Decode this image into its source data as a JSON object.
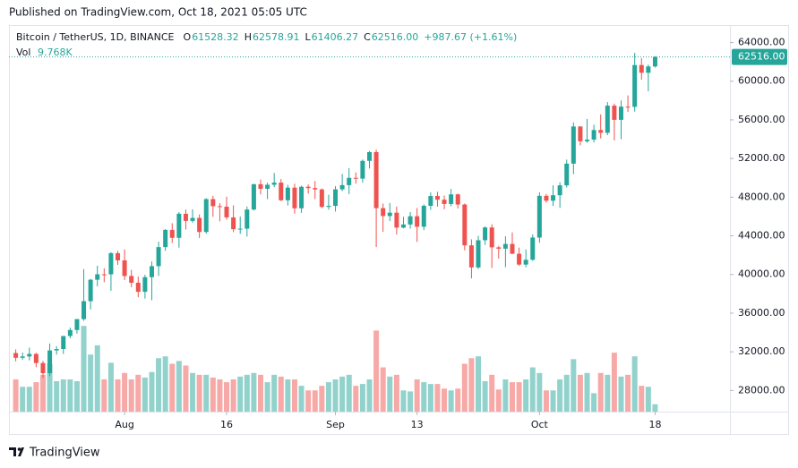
{
  "published": "Published on TradingView.com, Oct 18, 2021 05:05 UTC",
  "brand": "TradingView",
  "chart_data": {
    "type": "candlestick",
    "symbol": "Bitcoin / TetherUS, 1D, BINANCE",
    "legend": [
      {
        "key": "O",
        "value": "61528.32"
      },
      {
        "key": "H",
        "value": "62578.91"
      },
      {
        "key": "L",
        "value": "61406.27"
      },
      {
        "key": "C",
        "value": "62516.00"
      }
    ],
    "change": "+987.67 (+1.61%)",
    "volume_legend": {
      "key": "Vol",
      "value": "9.768K"
    },
    "last_price_label": "62516.00",
    "up_color": "#26a69a",
    "down_color": "#ef5350",
    "xlim": [
      "2021-07-15",
      "2021-10-29"
    ],
    "xticks": [
      {
        "value": "2021-08-01",
        "label": "Aug"
      },
      {
        "value": "2021-08-16",
        "label": "16"
      },
      {
        "value": "2021-09-01",
        "label": "Sep"
      },
      {
        "value": "2021-09-13",
        "label": "13"
      },
      {
        "value": "2021-10-01",
        "label": "Oct"
      },
      {
        "value": "2021-10-18",
        "label": "18"
      }
    ],
    "ylim": [
      25810,
      65810
    ],
    "yticks": [
      {
        "value": 28000,
        "label": "28000.00"
      },
      {
        "value": 32000,
        "label": "32000.00"
      },
      {
        "value": 36000,
        "label": "36000.00"
      },
      {
        "value": 40000,
        "label": "40000.00"
      },
      {
        "value": 44000,
        "label": "44000.00"
      },
      {
        "value": 48000,
        "label": "48000.00"
      },
      {
        "value": 52000,
        "label": "52000.00"
      },
      {
        "value": 56000,
        "label": "56000.00"
      },
      {
        "value": 60000,
        "label": "60000.00"
      },
      {
        "value": 64000,
        "label": "64000.00"
      }
    ],
    "volume_ylim": [
      0,
      512000
    ],
    "x": [
      "2021-07-16",
      "2021-07-17",
      "2021-07-18",
      "2021-07-19",
      "2021-07-20",
      "2021-07-21",
      "2021-07-22",
      "2021-07-23",
      "2021-07-24",
      "2021-07-25",
      "2021-07-26",
      "2021-07-27",
      "2021-07-28",
      "2021-07-29",
      "2021-07-30",
      "2021-07-31",
      "2021-08-01",
      "2021-08-02",
      "2021-08-03",
      "2021-08-04",
      "2021-08-05",
      "2021-08-06",
      "2021-08-07",
      "2021-08-08",
      "2021-08-09",
      "2021-08-10",
      "2021-08-11",
      "2021-08-12",
      "2021-08-13",
      "2021-08-14",
      "2021-08-15",
      "2021-08-16",
      "2021-08-17",
      "2021-08-18",
      "2021-08-19",
      "2021-08-20",
      "2021-08-21",
      "2021-08-22",
      "2021-08-23",
      "2021-08-24",
      "2021-08-25",
      "2021-08-26",
      "2021-08-27",
      "2021-08-28",
      "2021-08-29",
      "2021-08-30",
      "2021-08-31",
      "2021-09-01",
      "2021-09-02",
      "2021-09-03",
      "2021-09-04",
      "2021-09-05",
      "2021-09-06",
      "2021-09-07",
      "2021-09-08",
      "2021-09-09",
      "2021-09-10",
      "2021-09-11",
      "2021-09-12",
      "2021-09-13",
      "2021-09-14",
      "2021-09-15",
      "2021-09-16",
      "2021-09-17",
      "2021-09-18",
      "2021-09-19",
      "2021-09-20",
      "2021-09-21",
      "2021-09-22",
      "2021-09-23",
      "2021-09-24",
      "2021-09-25",
      "2021-09-26",
      "2021-09-27",
      "2021-09-28",
      "2021-09-29",
      "2021-09-30",
      "2021-10-01",
      "2021-10-02",
      "2021-10-03",
      "2021-10-04",
      "2021-10-05",
      "2021-10-06",
      "2021-10-07",
      "2021-10-08",
      "2021-10-09",
      "2021-10-10",
      "2021-10-11",
      "2021-10-12",
      "2021-10-13",
      "2021-10-14",
      "2021-10-15",
      "2021-10-16",
      "2021-10-17",
      "2021-10-18"
    ],
    "open": [
      31871,
      31383,
      31520,
      31778,
      30839,
      29790,
      32144,
      32288,
      33634,
      34258,
      35381,
      37237,
      39457,
      40019,
      40016,
      42206,
      41461,
      39850,
      39146,
      38208,
      39723,
      40862,
      42836,
      44614,
      43795,
      46280,
      45543,
      45855,
      44400,
      47800,
      47070,
      47018,
      45911,
      44686,
      44741,
      46724,
      49342,
      48867,
      49284,
      49507,
      47682,
      48987,
      46851,
      49077,
      48942,
      48803,
      46993,
      47100,
      48811,
      49246,
      50000,
      49918,
      51756,
      52667,
      46864,
      46048,
      46396,
      44851,
      45173,
      46026,
      44940,
      47104,
      48121,
      47737,
      47300,
      48292,
      47242,
      43016,
      40730,
      43547,
      44865,
      42810,
      42670,
      43160,
      42147,
      41025,
      41524,
      43820,
      48141,
      47634,
      48200,
      49225,
      51471,
      55315,
      53785,
      53955,
      54949,
      54659,
      57471,
      56006,
      57370,
      57347,
      61672,
      60875,
      61528.32
    ],
    "high": [
      32249,
      31935,
      32435,
      31899,
      31063,
      32858,
      32591,
      33613,
      34500,
      35398,
      40550,
      39542,
      40900,
      40640,
      42316,
      42448,
      42599,
      40480,
      39780,
      39969,
      41350,
      43392,
      44700,
      45310,
      46454,
      46718,
      46743,
      46218,
      47886,
      48144,
      47372,
      48053,
      47160,
      46000,
      47033,
      49382,
      49821,
      49500,
      50500,
      49876,
      49277,
      49387,
      49188,
      49309,
      49667,
      48909,
      48250,
      49150,
      50400,
      51000,
      50558,
      51900,
      52780,
      52920,
      47340,
      47399,
      47031,
      45969,
      46460,
      46880,
      47250,
      48486,
      48557,
      48170,
      48843,
      48372,
      47347,
      43639,
      44000,
      44978,
      45200,
      42966,
      43950,
      44350,
      42787,
      42590,
      44141,
      48495,
      48336,
      49228,
      49536,
      51886,
      55750,
      55332,
      56100,
      55489,
      56561,
      57839,
      57680,
      58000,
      58531,
      62933,
      62378,
      61718,
      62578.91
    ],
    "low": [
      31020,
      31164,
      31108,
      30407,
      29278,
      29482,
      31708,
      31780,
      33401,
      33881,
      35205,
      36383,
      38772,
      39200,
      38313,
      41000,
      39422,
      38690,
      37642,
      37508,
      37332,
      39853,
      42446,
      43261,
      42779,
      44650,
      45341,
      43770,
      44217,
      45971,
      45500,
      45660,
      44376,
      44203,
      43927,
      46616,
      48285,
      47800,
      49033,
      47600,
      47137,
      46300,
      46377,
      48370,
      47801,
      46862,
      46700,
      46512,
      48620,
      48316,
      49400,
      49500,
      50969,
      42843,
      44412,
      45514,
      44132,
      44770,
      44742,
      43370,
      44594,
      46682,
      47021,
      46750,
      47050,
      46829,
      42500,
      39600,
      40565,
      43063,
      40675,
      41646,
      40750,
      42098,
      40888,
      40753,
      41410,
      43283,
      47430,
      47088,
      46891,
      49000,
      50382,
      53357,
      53617,
      53661,
      54080,
      54415,
      53879,
      54000,
      56818,
      56850,
      60150,
      58963,
      61406.27
    ],
    "close": [
      31383,
      31520,
      31778,
      30839,
      29790,
      32144,
      32288,
      33634,
      34258,
      35381,
      37237,
      39457,
      40019,
      40016,
      42206,
      41461,
      39845,
      39147,
      38207,
      39723,
      40862,
      42836,
      44614,
      43792,
      46285,
      45543,
      45855,
      44400,
      47800,
      47070,
      47018,
      45911,
      44686,
      44742,
      46723,
      49342,
      48867,
      49284,
      49506,
      47682,
      48987,
      46851,
      49077,
      48942,
      48803,
      46993,
      47100,
      48811,
      49246,
      49999,
      49915,
      51756,
      52663,
      46863,
      46048,
      46395,
      44851,
      45173,
      46026,
      44940,
      47111,
      48121,
      47737,
      47300,
      48292,
      47241,
      43015,
      40734,
      43543,
      44865,
      42810,
      42670,
      43160,
      42147,
      41026,
      41524,
      43824,
      48141,
      47634,
      48200,
      49224,
      51471,
      55315,
      53785,
      53951,
      54949,
      54659,
      57471,
      56005,
      57367,
      57347,
      61672,
      60875,
      61528,
      62516
    ],
    "volume": [
      42700,
      32900,
      32900,
      39000,
      48800,
      63400,
      40300,
      42700,
      42700,
      40300,
      113500,
      75600,
      87800,
      42700,
      64700,
      42700,
      51200,
      42700,
      48800,
      45100,
      52500,
      70800,
      73200,
      63400,
      67100,
      61000,
      51200,
      48800,
      48800,
      45100,
      42700,
      39000,
      42700,
      46400,
      48800,
      51200,
      48800,
      39000,
      48800,
      46400,
      42700,
      42700,
      34200,
      28100,
      28100,
      34200,
      39000,
      42700,
      46400,
      48800,
      34200,
      36600,
      42700,
      107400,
      58600,
      46400,
      48800,
      28100,
      26800,
      42700,
      39000,
      36600,
      36600,
      30500,
      28100,
      30500,
      63400,
      70800,
      73200,
      40300,
      48800,
      29300,
      42700,
      39000,
      39000,
      42700,
      58600,
      51200,
      28100,
      28100,
      42700,
      48800,
      69500,
      48800,
      51200,
      24400,
      51200,
      48800,
      78100,
      46400,
      48800,
      73200,
      34200,
      32900,
      9768
    ]
  }
}
